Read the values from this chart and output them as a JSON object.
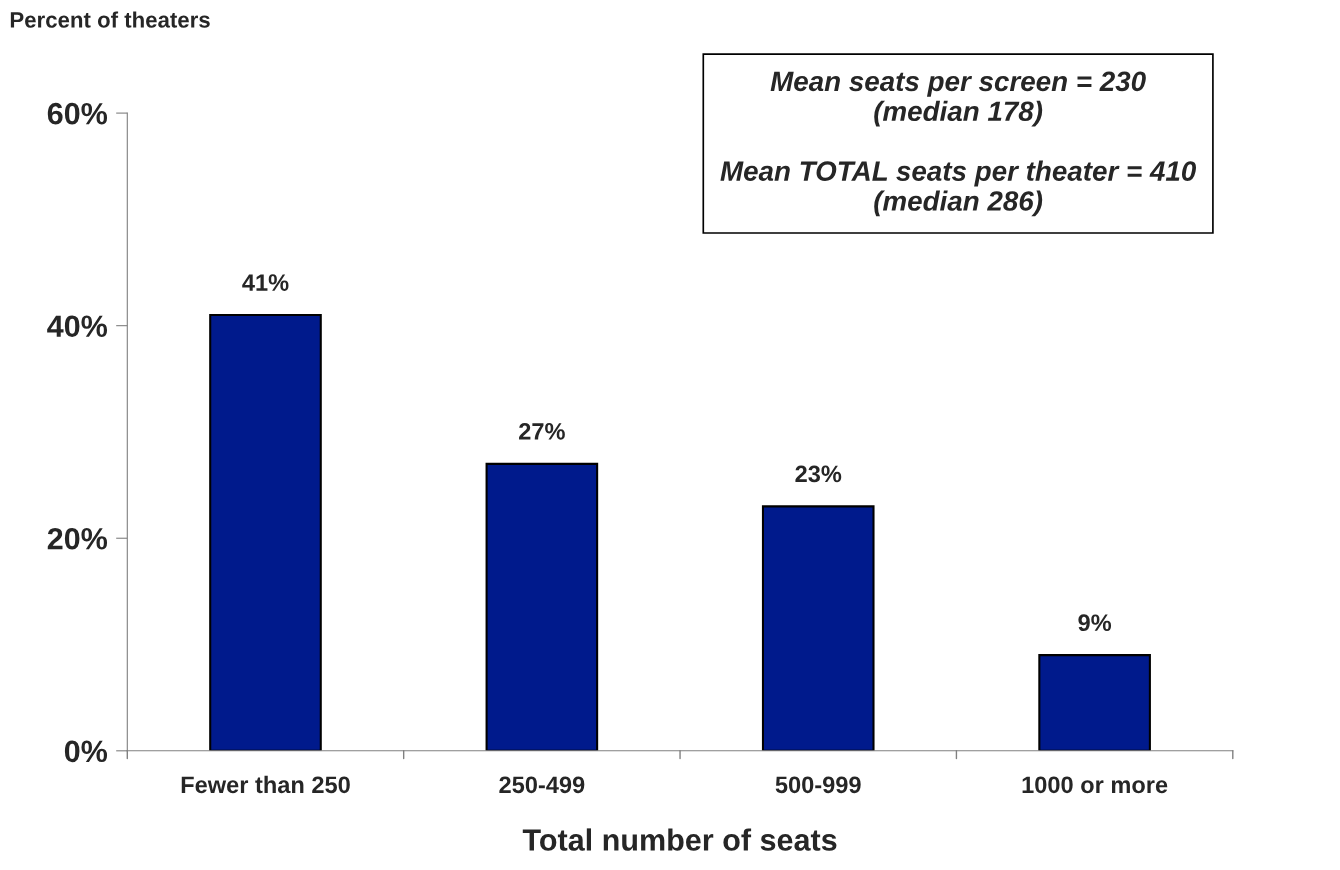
{
  "chart_data": {
    "type": "bar",
    "xlabel": "Total number of seats",
    "ylabel": "Percent of theaters",
    "categories": [
      "Fewer than 250",
      "250-499",
      "500-999",
      "1000 or more"
    ],
    "values": [
      41,
      27,
      23,
      9
    ],
    "value_labels": [
      "41%",
      "27%",
      "23%",
      "9%"
    ],
    "color": "#001a8c",
    "ylim": [
      0,
      60
    ],
    "yticks": [
      {
        "value": 0,
        "label": "0%"
      },
      {
        "value": 20,
        "label": "20%"
      },
      {
        "value": 40,
        "label": "40%"
      },
      {
        "value": 60,
        "label": "60%"
      }
    ],
    "grid": false,
    "annotations": [
      "Mean seats per screen = 230\n(median 178)\n\nMean TOTAL seats per theater = 410\n(median 286)"
    ]
  }
}
